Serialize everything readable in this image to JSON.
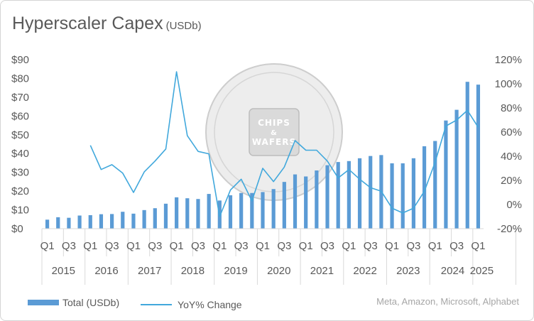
{
  "title": "Hyperscaler Capex",
  "title_unit": "(USDb)",
  "source": "Meta, Amazon, Microsoft, Alphabet",
  "watermark": {
    "line1": "CHIPS",
    "line2": "&",
    "line3": "WAFERS"
  },
  "colors": {
    "bar": "#5b9bd5",
    "line": "#41a8dc",
    "text": "#595959",
    "grid": "#d9d9d9"
  },
  "chart_data": {
    "type": "bar",
    "x_quarter_labels": [
      "Q1",
      "Q3",
      "Q1",
      "Q3",
      "Q1",
      "Q3",
      "Q1",
      "Q3",
      "Q1",
      "Q3",
      "Q1",
      "Q3",
      "Q1",
      "Q3",
      "Q1",
      "Q3",
      "Q1",
      "Q3",
      "Q1",
      "Q3",
      "Q1"
    ],
    "years": [
      "2015",
      "2016",
      "2017",
      "2018",
      "2019",
      "2020",
      "2021",
      "2022",
      "2023",
      "2024",
      "2025"
    ],
    "quarters": [
      "2015 Q1",
      "2015 Q2",
      "2015 Q3",
      "2015 Q4",
      "2016 Q1",
      "2016 Q2",
      "2016 Q3",
      "2016 Q4",
      "2017 Q1",
      "2017 Q2",
      "2017 Q3",
      "2017 Q4",
      "2018 Q1",
      "2018 Q2",
      "2018 Q3",
      "2018 Q4",
      "2019 Q1",
      "2019 Q2",
      "2019 Q3",
      "2019 Q4",
      "2020 Q1",
      "2020 Q2",
      "2020 Q3",
      "2020 Q4",
      "2021 Q1",
      "2021 Q2",
      "2021 Q3",
      "2021 Q4",
      "2022 Q1",
      "2022 Q2",
      "2022 Q3",
      "2022 Q4",
      "2023 Q1",
      "2023 Q2",
      "2023 Q3",
      "2023 Q4",
      "2024 Q1",
      "2024 Q2",
      "2024 Q3",
      "2024 Q4",
      "2025 Q1"
    ],
    "series": [
      {
        "name": "Total (USDb)",
        "type": "bar",
        "axis": "left",
        "values": [
          4.8,
          6.1,
          5.8,
          7.0,
          7.2,
          7.7,
          7.8,
          9.0,
          8.0,
          9.9,
          10.9,
          13.3,
          16.7,
          16.2,
          15.8,
          18.5,
          15.0,
          17.8,
          19.0,
          19.0,
          19.5,
          21.1,
          24.9,
          28.9,
          27.8,
          31.0,
          33.8,
          35.5,
          36.0,
          37.5,
          38.7,
          39.2,
          34.8,
          34.8,
          37.5,
          43.9,
          46.7,
          57.6,
          63.3,
          78.2,
          76.7
        ]
      },
      {
        "name": "YoY% Change",
        "type": "line",
        "axis": "right",
        "values": [
          null,
          null,
          null,
          null,
          49,
          29,
          33,
          26,
          10,
          27,
          36,
          46,
          110,
          57,
          44,
          42,
          -10,
          12,
          21,
          3,
          30,
          19,
          31,
          53,
          45,
          45,
          36,
          22,
          29,
          21,
          14,
          11,
          -3,
          -7,
          -3,
          11,
          35,
          65,
          70,
          78,
          64
        ]
      }
    ],
    "y_left": {
      "min": 0,
      "max": 90,
      "step": 10,
      "ticks": [
        "$0",
        "$10",
        "$20",
        "$30",
        "$40",
        "$50",
        "$60",
        "$70",
        "$80",
        "$90"
      ]
    },
    "y_right": {
      "min": -20,
      "max": 120,
      "step": 20,
      "ticks": [
        "-20%",
        "0%",
        "20%",
        "40%",
        "60%",
        "80%",
        "100%",
        "120%"
      ]
    },
    "grid": false,
    "legend_position": "bottom-left"
  }
}
